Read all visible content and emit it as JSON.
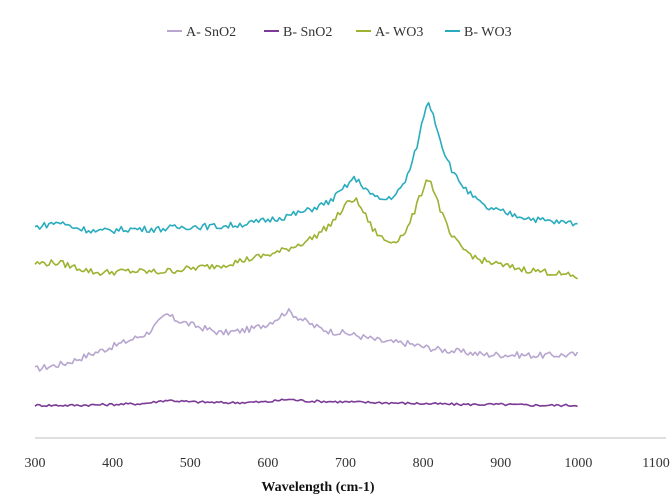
{
  "chart_data": {
    "type": "line",
    "title": "",
    "xlabel": "Wavelength (cm-1)",
    "ylabel": "",
    "xlim": [
      300,
      1100
    ],
    "x_ticks": [
      "300",
      "400",
      "500",
      "600",
      "700",
      "800",
      "900",
      "1000",
      "1100"
    ],
    "legend_position": "top",
    "grid": false,
    "y_axis_shown": false,
    "series": [
      {
        "name": "A- SnO2",
        "color": "#b7a6cf",
        "points": [
          [
            300,
            80
          ],
          [
            340,
            87
          ],
          [
            380,
            100
          ],
          [
            420,
            113
          ],
          [
            445,
            122
          ],
          [
            460,
            135
          ],
          [
            470,
            144
          ],
          [
            480,
            138
          ],
          [
            500,
            132
          ],
          [
            520,
            127
          ],
          [
            540,
            122
          ],
          [
            560,
            124
          ],
          [
            580,
            127
          ],
          [
            600,
            133
          ],
          [
            615,
            141
          ],
          [
            625,
            148
          ],
          [
            640,
            140
          ],
          [
            660,
            130
          ],
          [
            680,
            124
          ],
          [
            700,
            122
          ],
          [
            720,
            118
          ],
          [
            750,
            112
          ],
          [
            780,
            110
          ],
          [
            800,
            106
          ],
          [
            820,
            103
          ],
          [
            850,
            100
          ],
          [
            880,
            97
          ],
          [
            900,
            97
          ],
          [
            950,
            96
          ],
          [
            1000,
            97
          ]
        ]
      },
      {
        "name": "B- SnO2",
        "color": "#7b3b96",
        "points": [
          [
            300,
            38
          ],
          [
            350,
            38
          ],
          [
            400,
            39
          ],
          [
            440,
            40
          ],
          [
            470,
            44
          ],
          [
            500,
            42
          ],
          [
            550,
            41
          ],
          [
            600,
            42
          ],
          [
            625,
            45
          ],
          [
            650,
            43
          ],
          [
            700,
            42
          ],
          [
            750,
            41
          ],
          [
            800,
            40
          ],
          [
            850,
            39
          ],
          [
            900,
            39
          ],
          [
            950,
            38
          ],
          [
            1000,
            38
          ]
        ]
      },
      {
        "name": "A- WO3",
        "color": "#9bb331",
        "points": [
          [
            300,
            203
          ],
          [
            330,
            204
          ],
          [
            350,
            199
          ],
          [
            380,
            192
          ],
          [
            420,
            194
          ],
          [
            460,
            193
          ],
          [
            500,
            197
          ],
          [
            540,
            201
          ],
          [
            580,
            209
          ],
          [
            610,
            215
          ],
          [
            640,
            225
          ],
          [
            660,
            234
          ],
          [
            680,
            248
          ],
          [
            695,
            264
          ],
          [
            705,
            276
          ],
          [
            712,
            278
          ],
          [
            722,
            265
          ],
          [
            735,
            243
          ],
          [
            750,
            230
          ],
          [
            760,
            228
          ],
          [
            770,
            233
          ],
          [
            780,
            244
          ],
          [
            790,
            266
          ],
          [
            800,
            290
          ],
          [
            806,
            304
          ],
          [
            812,
            293
          ],
          [
            822,
            266
          ],
          [
            835,
            236
          ],
          [
            850,
            221
          ],
          [
            870,
            208
          ],
          [
            900,
            201
          ],
          [
            930,
            196
          ],
          [
            960,
            193
          ],
          [
            1000,
            187
          ]
        ]
      },
      {
        "name": "B- WO3",
        "color": "#2aacbf",
        "points": [
          [
            300,
            245
          ],
          [
            330,
            251
          ],
          [
            350,
            245
          ],
          [
            380,
            240
          ],
          [
            420,
            243
          ],
          [
            460,
            243
          ],
          [
            500,
            246
          ],
          [
            540,
            246
          ],
          [
            580,
            250
          ],
          [
            620,
            257
          ],
          [
            650,
            264
          ],
          [
            680,
            275
          ],
          [
            700,
            292
          ],
          [
            710,
            302
          ],
          [
            720,
            296
          ],
          [
            735,
            281
          ],
          [
            750,
            277
          ],
          [
            765,
            283
          ],
          [
            775,
            295
          ],
          [
            785,
            317
          ],
          [
            795,
            350
          ],
          [
            803,
            385
          ],
          [
            808,
            389
          ],
          [
            813,
            377
          ],
          [
            825,
            338
          ],
          [
            840,
            306
          ],
          [
            860,
            284
          ],
          [
            880,
            268
          ],
          [
            910,
            261
          ],
          [
            940,
            255
          ],
          [
            970,
            251
          ],
          [
            1000,
            250
          ]
        ]
      }
    ]
  }
}
